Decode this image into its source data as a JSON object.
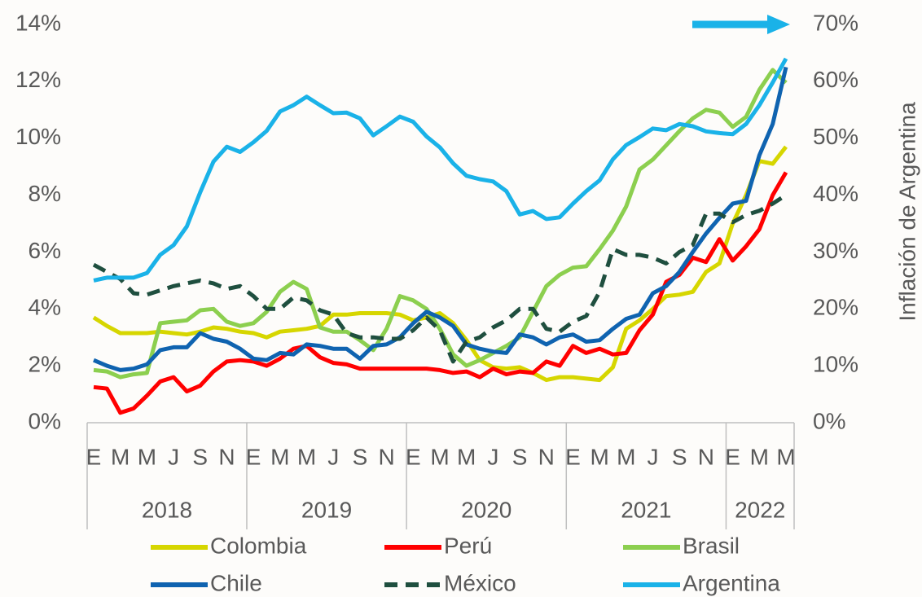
{
  "chart_data": {
    "type": "line",
    "y2_title": "Inflación de Argentina",
    "categories": [
      "E",
      null,
      "M",
      null,
      "M",
      null,
      "J",
      null,
      "S",
      null,
      "N",
      null,
      "E",
      null,
      "M",
      null,
      "M",
      null,
      "J",
      null,
      "S",
      null,
      "N",
      null,
      "E",
      null,
      "M",
      null,
      "M",
      null,
      "J",
      null,
      "S",
      null,
      "N",
      null,
      "E",
      null,
      "M",
      null,
      "M",
      null,
      "J",
      null,
      "S",
      null,
      "N",
      null,
      "E",
      null,
      "M",
      null,
      "M"
    ],
    "years": [
      "2018",
      "2019",
      "2020",
      "2021",
      "2022"
    ],
    "ylim": [
      0,
      14
    ],
    "yticks": [
      {
        "value": 0,
        "label": "0%"
      },
      {
        "value": 2,
        "label": "2%"
      },
      {
        "value": 4,
        "label": "4%"
      },
      {
        "value": 6,
        "label": "6%"
      },
      {
        "value": 8,
        "label": "8%"
      },
      {
        "value": 10,
        "label": "10%"
      },
      {
        "value": 12,
        "label": "12%"
      },
      {
        "value": 14,
        "label": "14%"
      }
    ],
    "y2lim": [
      0,
      70
    ],
    "y2ticks": [
      {
        "value": 0,
        "label": "0%"
      },
      {
        "value": 10,
        "label": "10%"
      },
      {
        "value": 20,
        "label": "20%"
      },
      {
        "value": 30,
        "label": "30%"
      },
      {
        "value": 40,
        "label": "40%"
      },
      {
        "value": 50,
        "label": "50%"
      },
      {
        "value": 60,
        "label": "60%"
      },
      {
        "value": 70,
        "label": "70%"
      }
    ],
    "series": [
      {
        "name": "Colombia",
        "color": "#d6d600",
        "style": "solid",
        "values": [
          3.7,
          3.4,
          3.15,
          3.15,
          3.15,
          3.2,
          3.15,
          3.1,
          3.2,
          3.35,
          3.3,
          3.2,
          3.15,
          3.0,
          3.2,
          3.25,
          3.3,
          3.4,
          3.8,
          3.8,
          3.85,
          3.85,
          3.85,
          3.8,
          3.6,
          3.7,
          3.85,
          3.5,
          2.9,
          2.2,
          1.95,
          1.9,
          1.95,
          1.75,
          1.5,
          1.6,
          1.6,
          1.55,
          1.5,
          1.95,
          3.3,
          3.6,
          4.0,
          4.45,
          4.5,
          4.6,
          5.3,
          5.6,
          7.0,
          8.0,
          9.2,
          9.1,
          9.7
        ]
      },
      {
        "name": "Perú",
        "color": "#ff0000",
        "style": "solid",
        "values": [
          1.25,
          1.2,
          0.35,
          0.5,
          0.95,
          1.45,
          1.6,
          1.1,
          1.3,
          1.8,
          2.15,
          2.2,
          2.15,
          2.0,
          2.25,
          2.6,
          2.7,
          2.3,
          2.1,
          2.05,
          1.9,
          1.9,
          1.9,
          1.9,
          1.9,
          1.9,
          1.85,
          1.75,
          1.8,
          1.6,
          1.9,
          1.7,
          1.8,
          1.75,
          2.15,
          2.0,
          2.7,
          2.45,
          2.6,
          2.4,
          2.45,
          3.25,
          3.8,
          4.95,
          5.2,
          5.8,
          5.65,
          6.45,
          5.7,
          6.2,
          6.8,
          8.0,
          8.8
        ]
      },
      {
        "name": "Brasil",
        "color": "#8ccf4f",
        "style": "solid",
        "values": [
          1.85,
          1.8,
          1.6,
          1.7,
          1.75,
          3.5,
          3.55,
          3.6,
          3.95,
          4.0,
          3.55,
          3.4,
          3.5,
          3.9,
          4.6,
          4.95,
          4.7,
          3.35,
          3.2,
          3.2,
          2.9,
          2.55,
          3.3,
          4.45,
          4.3,
          4.0,
          3.3,
          2.4,
          2.0,
          2.2,
          2.45,
          2.7,
          3.0,
          3.9,
          4.8,
          5.2,
          5.45,
          5.5,
          6.1,
          6.75,
          7.6,
          8.9,
          9.25,
          9.75,
          10.25,
          10.7,
          11.0,
          10.9,
          10.4,
          10.75,
          11.7,
          12.4,
          11.95
        ]
      },
      {
        "name": "Chile",
        "color": "#0f63b0",
        "style": "solid",
        "values": [
          2.2,
          2.0,
          1.85,
          1.9,
          2.05,
          2.55,
          2.65,
          2.65,
          3.15,
          2.95,
          2.85,
          2.6,
          2.25,
          2.2,
          2.45,
          2.4,
          2.75,
          2.7,
          2.6,
          2.6,
          2.25,
          2.7,
          2.75,
          3.0,
          3.5,
          3.9,
          3.7,
          3.4,
          2.75,
          2.6,
          2.5,
          2.45,
          3.1,
          3.0,
          2.75,
          3.0,
          3.1,
          2.85,
          2.9,
          3.3,
          3.65,
          3.8,
          4.55,
          4.8,
          5.3,
          6.0,
          6.65,
          7.2,
          7.7,
          7.8,
          9.4,
          10.5,
          12.5
        ]
      },
      {
        "name": "México",
        "color": "#1f4f3f",
        "style": "dashed",
        "values": [
          5.55,
          5.3,
          5.05,
          4.55,
          4.5,
          4.65,
          4.8,
          4.9,
          5.0,
          4.9,
          4.7,
          4.8,
          4.45,
          4.0,
          4.0,
          4.4,
          4.3,
          3.95,
          3.8,
          3.15,
          3.0,
          3.0,
          2.95,
          2.95,
          3.25,
          3.7,
          3.25,
          2.15,
          2.85,
          3.0,
          3.35,
          3.6,
          4.0,
          4.0,
          3.3,
          3.2,
          3.55,
          3.75,
          4.6,
          6.1,
          5.9,
          5.9,
          5.8,
          5.6,
          6.0,
          6.25,
          7.35,
          7.35,
          7.05,
          7.3,
          7.45,
          7.7,
          8.0
        ]
      },
      {
        "name": "Argentina",
        "color": "#1ab2e8",
        "style": "solid",
        "axis": "y2",
        "values": [
          25.0,
          25.5,
          25.5,
          25.5,
          26.3,
          29.5,
          31.2,
          34.5,
          40.5,
          45.9,
          48.5,
          47.6,
          49.3,
          51.3,
          54.7,
          55.8,
          57.3,
          55.8,
          54.4,
          54.5,
          53.5,
          50.5,
          52.1,
          53.8,
          52.9,
          50.3,
          48.4,
          45.6,
          43.4,
          42.8,
          42.4,
          40.7,
          36.6,
          37.2,
          35.8,
          36.1,
          38.5,
          40.7,
          42.6,
          46.3,
          48.8,
          50.2,
          51.7,
          51.4,
          52.5,
          52.1,
          51.2,
          50.9,
          50.7,
          52.5,
          55.8,
          59.8,
          64.0
        ]
      }
    ]
  }
}
